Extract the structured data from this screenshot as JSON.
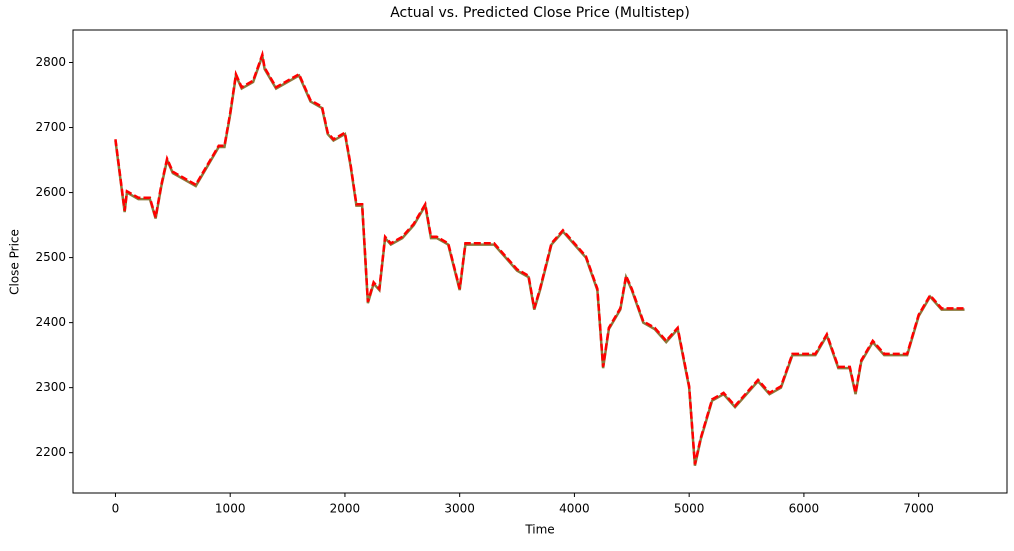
{
  "chart_data": {
    "type": "line",
    "title": "Actual vs. Predicted Close Price (Multistep)",
    "xlabel": "Time",
    "ylabel": "Close Price",
    "x": [
      0,
      80,
      100,
      200,
      300,
      350,
      400,
      450,
      500,
      600,
      700,
      800,
      900,
      950,
      1000,
      1050,
      1100,
      1200,
      1280,
      1300,
      1400,
      1500,
      1600,
      1700,
      1800,
      1850,
      1900,
      2000,
      2050,
      2100,
      2150,
      2200,
      2250,
      2300,
      2350,
      2400,
      2500,
      2600,
      2700,
      2750,
      2800,
      2900,
      3000,
      3050,
      3200,
      3300,
      3400,
      3500,
      3600,
      3650,
      3700,
      3800,
      3900,
      4000,
      4100,
      4200,
      4250,
      4300,
      4400,
      4450,
      4500,
      4600,
      4700,
      4800,
      4900,
      5000,
      5050,
      5100,
      5200,
      5300,
      5400,
      5500,
      5600,
      5700,
      5800,
      5900,
      6000,
      6100,
      6200,
      6300,
      6400,
      6450,
      6500,
      6600,
      6700,
      6800,
      6900,
      7000,
      7100,
      7200,
      7300,
      7400
    ],
    "series": [
      {
        "color": "#8a7a3c",
        "style": "solid",
        "values": [
          2680,
          2570,
          2600,
          2590,
          2590,
          2560,
          2610,
          2650,
          2630,
          2620,
          2610,
          2640,
          2670,
          2670,
          2720,
          2780,
          2760,
          2770,
          2810,
          2790,
          2760,
          2770,
          2780,
          2740,
          2730,
          2690,
          2680,
          2690,
          2640,
          2580,
          2580,
          2430,
          2460,
          2450,
          2530,
          2520,
          2530,
          2550,
          2580,
          2530,
          2530,
          2520,
          2450,
          2520,
          2520,
          2520,
          2500,
          2480,
          2470,
          2420,
          2450,
          2520,
          2540,
          2520,
          2500,
          2450,
          2330,
          2390,
          2420,
          2470,
          2450,
          2400,
          2390,
          2370,
          2390,
          2300,
          2180,
          2220,
          2280,
          2290,
          2270,
          2290,
          2310,
          2290,
          2300,
          2350,
          2350,
          2350,
          2380,
          2330,
          2330,
          2290,
          2340,
          2370,
          2350,
          2350,
          2350,
          2410,
          2440,
          2420,
          2420,
          2420
        ]
      },
      {
        "color": "#ff0000",
        "style": "dashed",
        "values": [
          2682,
          2572,
          2602,
          2592,
          2592,
          2562,
          2612,
          2652,
          2632,
          2622,
          2612,
          2642,
          2672,
          2672,
          2722,
          2782,
          2762,
          2772,
          2812,
          2792,
          2762,
          2772,
          2782,
          2742,
          2732,
          2692,
          2682,
          2692,
          2642,
          2582,
          2582,
          2432,
          2462,
          2452,
          2532,
          2522,
          2532,
          2552,
          2582,
          2532,
          2532,
          2522,
          2452,
          2522,
          2522,
          2522,
          2502,
          2482,
          2472,
          2422,
          2452,
          2522,
          2542,
          2522,
          2502,
          2452,
          2332,
          2392,
          2422,
          2472,
          2452,
          2402,
          2392,
          2372,
          2392,
          2302,
          2182,
          2222,
          2282,
          2292,
          2272,
          2292,
          2312,
          2292,
          2302,
          2352,
          2352,
          2352,
          2382,
          2332,
          2332,
          2292,
          2342,
          2372,
          2352,
          2352,
          2352,
          2412,
          2442,
          2422,
          2422,
          2422
        ]
      }
    ],
    "xlim": [
      -370,
      7770
    ],
    "ylim": [
      2138,
      2850
    ],
    "xticks": [
      0,
      1000,
      2000,
      3000,
      4000,
      5000,
      6000,
      7000
    ],
    "yticks": [
      2200,
      2300,
      2400,
      2500,
      2600,
      2700,
      2800
    ]
  }
}
